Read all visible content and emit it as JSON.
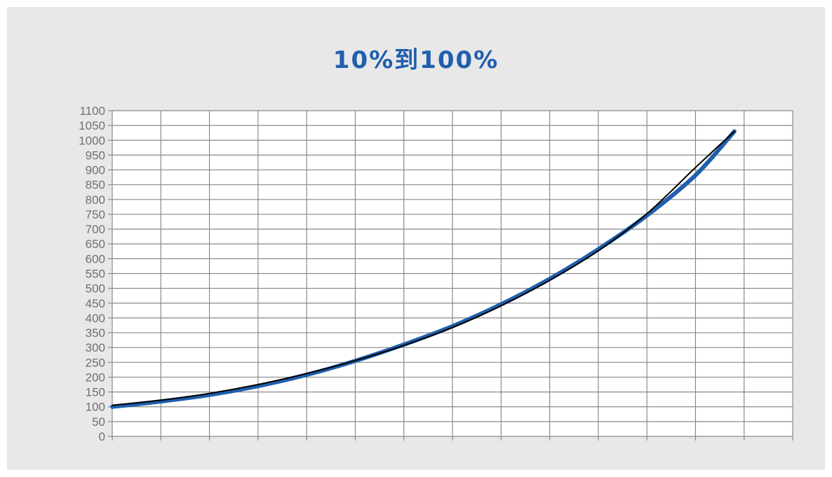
{
  "chart_data": {
    "type": "line",
    "title": "10%到100%",
    "xlabel": "",
    "ylabel": "",
    "x": [
      0,
      1,
      2,
      3,
      4,
      5,
      6,
      7,
      8,
      9,
      10,
      11,
      12,
      12.8
    ],
    "ylim": [
      0,
      1100
    ],
    "ytick_step": 50,
    "yticks": [
      "0",
      "50",
      "100",
      "150",
      "200",
      "250",
      "300",
      "350",
      "400",
      "450",
      "500",
      "550",
      "600",
      "650",
      "700",
      "750",
      "800",
      "850",
      "900",
      "950",
      "1000",
      "1050",
      "1100"
    ],
    "x_gridlines": 14,
    "grid": true,
    "legend": "none",
    "series": [
      {
        "color": "#000000",
        "width": 2,
        "values": [
          105,
          122,
          145,
          175,
          212,
          256,
          307,
          368,
          441,
          527,
          627,
          752,
          908,
          1030
        ]
      },
      {
        "color": "#1f5fad",
        "width": 6,
        "values": [
          100,
          118,
          140,
          170,
          208,
          255,
          310,
          372,
          446,
          532,
          632,
          746,
          882,
          1030
        ]
      }
    ]
  },
  "colors": {
    "panel": "#e8e8e8",
    "plot_bg": "#ffffff",
    "grid": "#8a8a8a",
    "title": "#1f5fad"
  }
}
